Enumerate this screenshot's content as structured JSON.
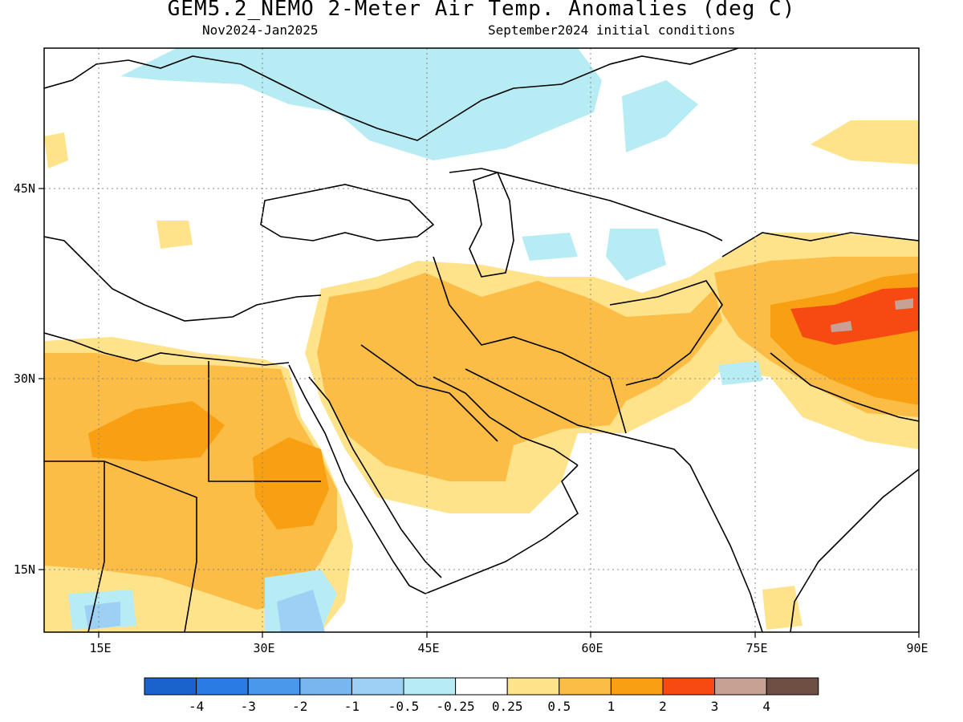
{
  "header": {
    "title": "GEM5.2_NEMO 2-Meter Air Temp. Anomalies (deg C)",
    "period": "Nov2024-Jan2025",
    "init": "September2024 initial conditions"
  },
  "map": {
    "lon_range": [
      10,
      90
    ],
    "lat_range": [
      10,
      55
    ],
    "x_ticks": [
      "15E",
      "30E",
      "45E",
      "60E",
      "75E",
      "90E"
    ],
    "y_ticks": [
      "45N",
      "30N",
      "15N"
    ]
  },
  "colorbar": {
    "colors": [
      "#1a63cc",
      "#2a7be4",
      "#4a98ec",
      "#79b6f0",
      "#9ed0f5",
      "#b7ecf5",
      "#ffffff",
      "#ffe38a",
      "#fcbd47",
      "#f9a012",
      "#f64a12",
      "#c7a193",
      "#6f4f43"
    ],
    "labels": [
      "-4",
      "-3",
      "-2",
      "-1",
      "-0.5",
      "-0.25",
      "0.25",
      "0.5",
      "1",
      "2",
      "3",
      "4"
    ]
  }
}
